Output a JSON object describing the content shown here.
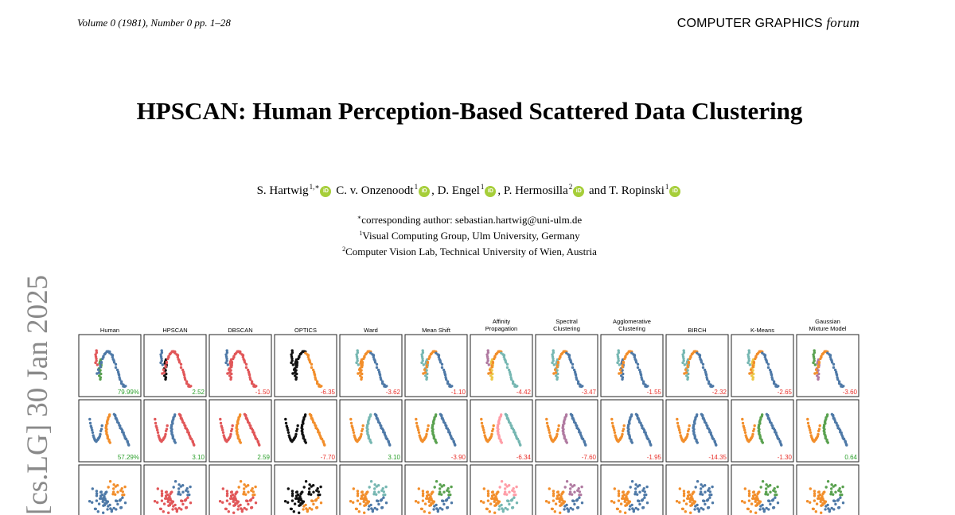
{
  "header": {
    "journal_ref": "Volume 0 (1981), Number 0 pp. 1–28",
    "journal_name": "COMPUTER GRAPHICS",
    "journal_name_italic": "forum"
  },
  "title": "HPSCAN: Human Perception-Based Scattered Data Clustering",
  "authors": [
    {
      "name": "S. Hartwig",
      "sup": "1,∗"
    },
    {
      "name": "C. v. Onzenoodt",
      "sup": "1"
    },
    {
      "name": "D. Engel",
      "sup": "1"
    },
    {
      "name": "P. Hermosilla",
      "sup": "2"
    },
    {
      "name": "T. Ropinski",
      "sup": "1"
    }
  ],
  "author_separator": ",",
  "author_and": "and",
  "orcid_label": "iD",
  "affiliations": [
    {
      "sup": "∗",
      "text": "corresponding author: sebastian.hartwig@uni-ulm.de"
    },
    {
      "sup": "1",
      "text": "Visual Computing Group, Ulm University, Germany"
    },
    {
      "sup": "2",
      "text": "Computer Vision Lab, Technical University of Wien, Austria"
    }
  ],
  "arxiv_stamp": "[cs.LG]  30 Jan 2025",
  "figure": {
    "methods": [
      [
        "Human"
      ],
      [
        "HPSCAN"
      ],
      [
        "DBSCAN"
      ],
      [
        "OPTICS"
      ],
      [
        "Ward"
      ],
      [
        "Mean Shift"
      ],
      [
        "Affinity",
        "Propagation"
      ],
      [
        "Spectral",
        "Clustering"
      ],
      [
        "Agglomerative",
        "Clustering"
      ],
      [
        "BIRCH"
      ],
      [
        "K-Means"
      ],
      [
        "Gaussian",
        "Mixture Model"
      ]
    ],
    "rows": [
      {
        "shape": "wave",
        "scores": [
          "79.99%",
          "2.52",
          "-1.50",
          "-6.35",
          "-3.62",
          "-1.10",
          "-4.42",
          "-3.47",
          "-1.55",
          "-2.32",
          "-2.65",
          "-3.60"
        ]
      },
      {
        "shape": "lines",
        "scores": [
          "57.29%",
          "3.10",
          "2.59",
          "-7.70",
          "3.10",
          "-3.90",
          "-6.34",
          "-7.60",
          "-1.95",
          "-14.35",
          "-1.30",
          "0.64"
        ]
      },
      {
        "shape": "blob",
        "scores": []
      }
    ],
    "colors": {
      "blue": "#4e79a7",
      "orange": "#f28e2b",
      "red": "#e15759",
      "teal": "#76b7b2",
      "green": "#59a14f",
      "yellow": "#edc948",
      "purple": "#b07aa1",
      "pink": "#ff9da7",
      "black": "#111111",
      "positive": "#2ca02c",
      "negative": "#e8302a"
    }
  }
}
